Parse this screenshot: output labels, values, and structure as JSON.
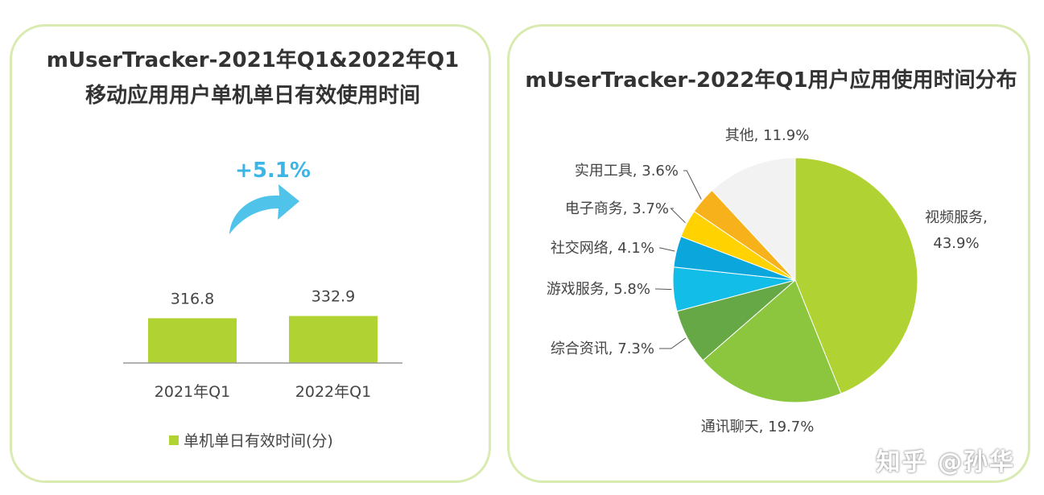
{
  "chart_data": [
    {
      "type": "bar",
      "title_line1": "mUserTracker-2021年Q1&2022年Q1",
      "title_line2": "移动应用用户单机单日有效使用时间",
      "categories": [
        "2021年Q1",
        "2022年Q1"
      ],
      "values": [
        316.8,
        332.9
      ],
      "value_labels": [
        "316.8",
        "332.9"
      ],
      "legend": "单机单日有效时间(分)",
      "growth_label": "+5.1%",
      "colors": {
        "bar": "#b1d233",
        "arrow": "#4fc3ea",
        "growth_text": "#3bb6e6"
      }
    },
    {
      "type": "pie",
      "title": "mUserTracker-2022年Q1用户应用使用时间分布",
      "slices": [
        {
          "name": "视频服务",
          "value": 43.9,
          "label": "43.9%",
          "color": "#b1d233"
        },
        {
          "name": "通讯聊天",
          "value": 19.7,
          "label": "19.7%",
          "color": "#8cc63f"
        },
        {
          "name": "综合资讯",
          "value": 7.3,
          "label": "7.3%",
          "color": "#65a845"
        },
        {
          "name": "游戏服务",
          "value": 5.8,
          "label": "5.8%",
          "color": "#12bde8"
        },
        {
          "name": "社交网络",
          "value": 4.1,
          "label": "4.1%",
          "color": "#0aa6dc"
        },
        {
          "name": "电子商务",
          "value": 3.7,
          "label": "3.7%",
          "color": "#ffd200"
        },
        {
          "name": "实用工具",
          "value": 3.6,
          "label": "3.6%",
          "color": "#f7b21b"
        },
        {
          "name": "其他",
          "value": 11.9,
          "label": "11.9%",
          "color": "#f2f2f2"
        }
      ]
    }
  ],
  "watermark": "知乎 @孙华"
}
